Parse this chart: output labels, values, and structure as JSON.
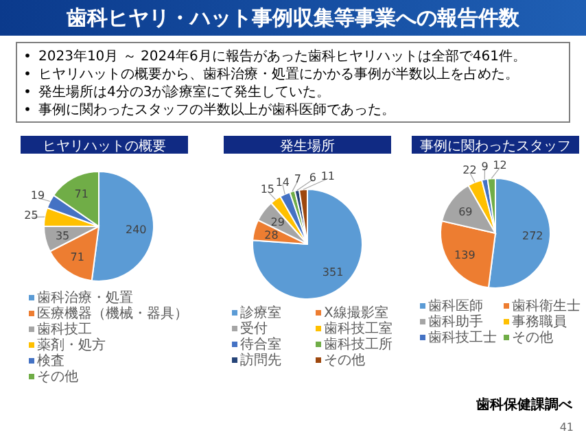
{
  "chart_data": [
    {
      "type": "other",
      "title": "歯科ヒヤリ・ハット事例収集等事業への報告件数",
      "annotations": [
        "2023年10月 ～ 2024年6月に報告があった歯科ヒヤリハットは全部で461件。",
        "ヒヤリハットの概要から、歯科治療・処置にかかる事例が半数以上を占めた。",
        "発生場所は4分の3が診療室にて発生していた。",
        "事例に関わったスタッフの半数以上が歯科医師であった。",
        "歯科保健課調べ",
        "41"
      ]
    },
    {
      "type": "pie",
      "title": "ヒヤリハットの概要",
      "categories": [
        "歯科治療・処置",
        "医療機器（機械・器具）",
        "歯科技工",
        "薬剤・処方",
        "検査",
        "その他"
      ],
      "values": [
        240,
        71,
        35,
        25,
        19,
        71
      ],
      "colors": [
        "#5b9bd5",
        "#ed7d31",
        "#a5a5a5",
        "#ffc000",
        "#4472c4",
        "#70ad47"
      ],
      "data_labels": true,
      "legend": "bottom"
    },
    {
      "type": "pie",
      "title": "発生場所",
      "categories": [
        "診療室",
        "X線撮影室",
        "受付",
        "歯科技工室",
        "待合室",
        "歯科技工所",
        "訪問先",
        "その他"
      ],
      "values": [
        351,
        28,
        29,
        15,
        14,
        7,
        6,
        11
      ],
      "colors": [
        "#5b9bd5",
        "#ed7d31",
        "#a5a5a5",
        "#ffc000",
        "#4472c4",
        "#70ad47",
        "#264478",
        "#9e480e"
      ],
      "data_labels": true,
      "legend": "bottom"
    },
    {
      "type": "pie",
      "title": "事例に関わったスタッフ",
      "categories": [
        "歯科医師",
        "歯科衛生士",
        "歯科助手",
        "事務職員",
        "歯科技工士",
        "その他"
      ],
      "values": [
        272,
        139,
        69,
        22,
        9,
        12
      ],
      "colors": [
        "#5b9bd5",
        "#ed7d31",
        "#a5a5a5",
        "#ffc000",
        "#4472c4",
        "#70ad47"
      ],
      "data_labels": true,
      "legend": "bottom"
    }
  ]
}
